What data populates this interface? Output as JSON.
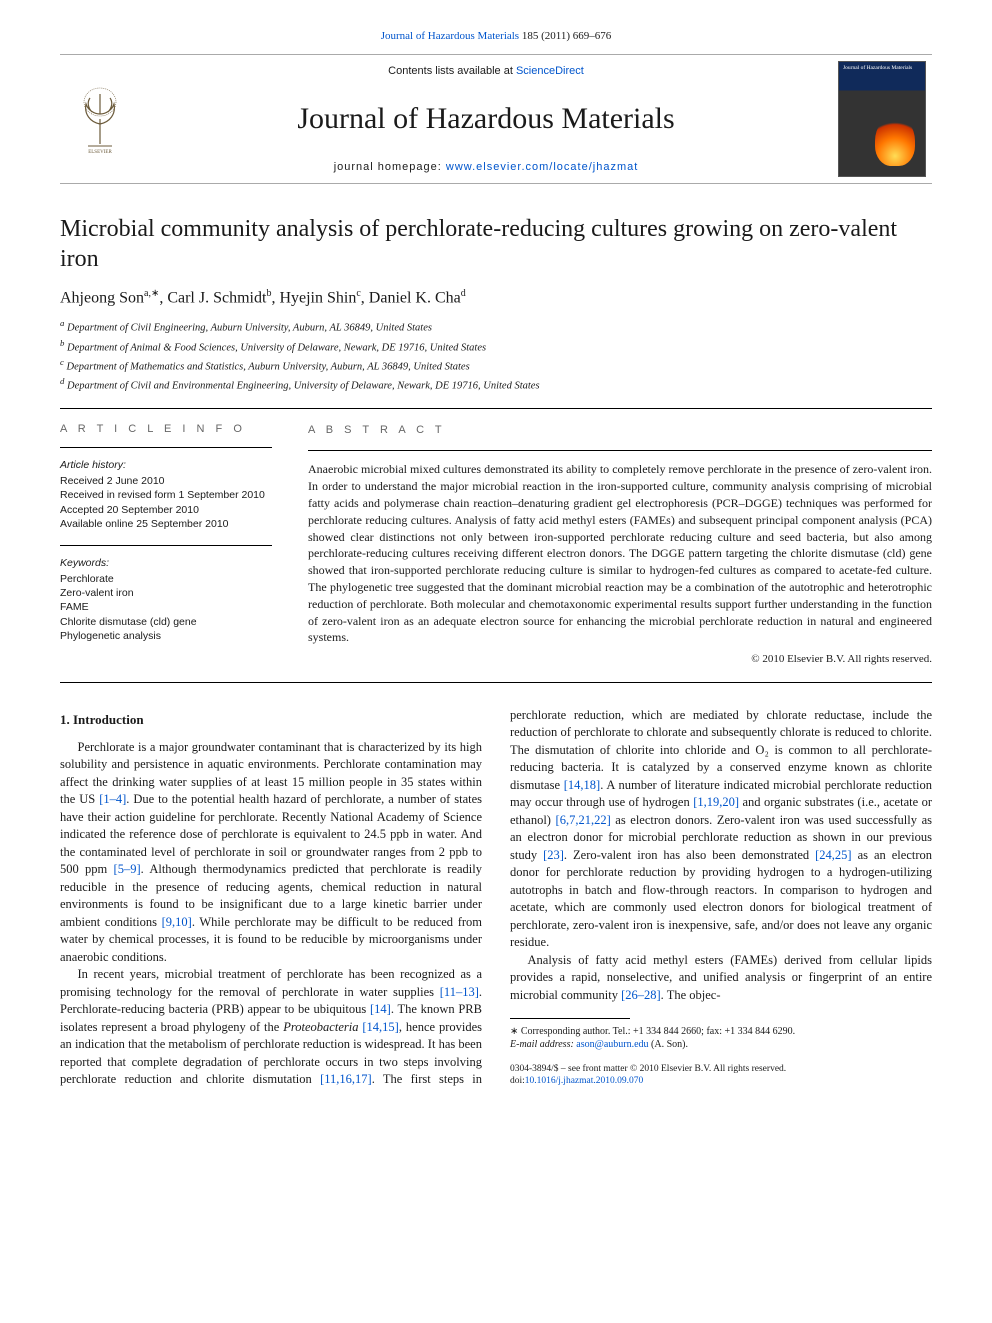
{
  "topLink": {
    "prefix": "",
    "journal": "Journal of Hazardous Materials",
    "citation": " 185 (2011) 669–676"
  },
  "masthead": {
    "contentsPrefix": "Contents lists available at ",
    "contentsLink": "ScienceDirect",
    "journalName": "Journal of Hazardous Materials",
    "homepagePrefix": "journal homepage: ",
    "homepageUrl": "www.elsevier.com/locate/jhazmat",
    "coverLabel": "Journal of Hazardous Materials"
  },
  "article": {
    "title": "Microbial community analysis of perchlorate-reducing cultures growing on zero-valent iron",
    "authorsHtml": "Ahjeong Son<sup>a,∗</sup>, Carl J. Schmidt<sup>b</sup>, Hyejin Shin<sup>c</sup>, Daniel K. Cha<sup>d</sup>",
    "affiliations": [
      "a Department of Civil Engineering, Auburn University, Auburn, AL 36849, United States",
      "b Department of Animal & Food Sciences, University of Delaware, Newark, DE 19716, United States",
      "c Department of Mathematics and Statistics, Auburn University, Auburn, AL 36849, United States",
      "d Department of Civil and Environmental Engineering, University of Delaware, Newark, DE 19716, United States"
    ]
  },
  "info": {
    "headInfo": "A R T I C L E   I N F O",
    "historyLabel": "Article history:",
    "history": [
      "Received 2 June 2010",
      "Received in revised form 1 September 2010",
      "Accepted 20 September 2010",
      "Available online 25 September 2010"
    ],
    "keywordsLabel": "Keywords:",
    "keywords": [
      "Perchlorate",
      "Zero-valent iron",
      "FAME",
      "Chlorite dismutase (cld) gene",
      "Phylogenetic analysis"
    ]
  },
  "abstract": {
    "head": "A B S T R A C T",
    "text": "Anaerobic microbial mixed cultures demonstrated its ability to completely remove perchlorate in the presence of zero-valent iron. In order to understand the major microbial reaction in the iron-supported culture, community analysis comprising of microbial fatty acids and polymerase chain reaction–denaturing gradient gel electrophoresis (PCR–DGGE) techniques was performed for perchlorate reducing cultures. Analysis of fatty acid methyl esters (FAMEs) and subsequent principal component analysis (PCA) showed clear distinctions not only between iron-supported perchlorate reducing culture and seed bacteria, but also among perchlorate-reducing cultures receiving different electron donors. The DGGE pattern targeting the chlorite dismutase (cld) gene showed that iron-supported perchlorate reducing culture is similar to hydrogen-fed cultures as compared to acetate-fed culture. The phylogenetic tree suggested that the dominant microbial reaction may be a combination of the autotrophic and heterotrophic reduction of perchlorate. Both molecular and chemotaxonomic experimental results support further understanding in the function of zero-valent iron as an adequate electron source for enhancing the microbial perchlorate reduction in natural and engineered systems.",
    "copyright": "© 2010 Elsevier B.V. All rights reserved."
  },
  "body": {
    "sectionHead": "1.  Introduction",
    "col1p1_a": "Perchlorate is a major groundwater contaminant that is characterized by its high solubility and persistence in aquatic environments. Perchlorate contamination may affect the drinking water supplies of at least 15 million people in 35 states within the US ",
    "ref1": "[1–4]",
    "col1p1_b": ". Due to the potential health hazard of perchlorate, a number of states have their action guideline for perchlorate. Recently National Academy of Science indicated the reference dose of perchlorate is equivalent to 24.5 ppb in water. And the contaminated level of perchlorate in soil or groundwater ranges from 2 ppb to 500 ppm ",
    "ref2": "[5–9]",
    "col1p1_c": ". Although thermodynamics predicted that perchlorate is readily reducible in the presence of reducing agents, chemical reduction in natural environments is found to be insignificant due to a large kinetic barrier under ambient conditions ",
    "ref3": "[9,10]",
    "col1p1_d": ". While perchlorate may be difficult to be reduced from water by chemical processes, it is found to be reducible by microorganisms under anaerobic conditions.",
    "col1p2_a": "In recent years, microbial treatment of perchlorate has been recognized as a promising technology for the removal of perchlorate in water supplies ",
    "ref4": "[11–13]",
    "col1p2_b": ". Perchlorate-reducing bacteria (PRB) ",
    "col2p1_a": "appear to be ubiquitous ",
    "ref5": "[14]",
    "col2p1_b": ". The known PRB isolates represent a broad phylogeny of the ",
    "italic1": "Proteobacteria",
    "col2p1_c": " ",
    "ref6": "[14,15]",
    "col2p1_d": ", hence provides an indication that the metabolism of perchlorate reduction is widespread. It has been reported that complete degradation of perchlorate occurs in two steps involving perchlorate reduction and chlorite dismutation ",
    "ref7": "[11,16,17]",
    "col2p1_e": ". The first steps in perchlorate reduction, which are mediated by chlorate reductase, include the reduction of perchlorate to chlorate and subsequently chlorate is reduced to chlorite. The dismutation of chlorite into chloride and O₂ is common to all perchlorate-reducing bacteria. It is catalyzed by a conserved enzyme known as chlorite dismutase ",
    "ref8": "[14,18]",
    "col2p1_f": ". A number of literature indicated microbial perchlorate reduction may occur through use of hydrogen ",
    "ref9": "[1,19,20]",
    "col2p1_g": " and organic substrates (i.e., acetate or ethanol) ",
    "ref10": "[6,7,21,22]",
    "col2p1_h": " as electron donors. Zero-valent iron was used successfully as an electron donor for microbial perchlorate reduction as shown in our previous study ",
    "ref11": "[23]",
    "col2p1_i": ". Zero-valent iron has also been demonstrated ",
    "ref12": "[24,25]",
    "col2p1_j": " as an electron donor for perchlorate reduction by providing hydrogen to a hydrogen-utilizing autotrophs in batch and flow-through reactors. In comparison to hydrogen and acetate, which are commonly used electron donors for biological treatment of perchlorate, zero-valent iron is inexpensive, safe, and/or does not leave any organic residue.",
    "col2p2_a": "Analysis of fatty acid methyl esters (FAMEs) derived from cellular lipids provides a rapid, nonselective, and unified analysis or fingerprint of an entire microbial community ",
    "ref13": "[26–28]",
    "col2p2_b": ". The objec-"
  },
  "footnotes": {
    "corr": "∗ Corresponding author. Tel.: +1 334 844 2660; fax: +1 334 844 6290.",
    "emailLabel": "E-mail address: ",
    "email": "ason@auburn.edu",
    "emailSuffix": " (A. Son)."
  },
  "footer": {
    "line1": "0304-3894/$ – see front matter © 2010 Elsevier B.V. All rights reserved.",
    "doiLabel": "doi:",
    "doi": "10.1016/j.jhazmat.2010.09.070"
  },
  "colors": {
    "link": "#0055cc",
    "text": "#1a1a1a",
    "border": "#aaaaaa",
    "infoHead": "#666666"
  }
}
